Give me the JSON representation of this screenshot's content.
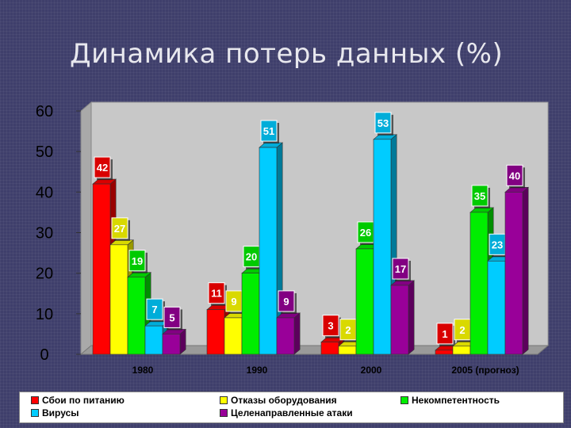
{
  "slide": {
    "title": "Динамика потерь данных (%)"
  },
  "chart_data": {
    "type": "bar",
    "title": "Динамика потерь данных (%)",
    "xlabel": "",
    "ylabel": "",
    "ylim": [
      0,
      60
    ],
    "yticks": [
      0,
      10,
      20,
      30,
      40,
      50,
      60
    ],
    "grid": false,
    "legend_position": "bottom",
    "categories": [
      "1980",
      "1990",
      "2000",
      "2005 (прогноз)"
    ],
    "series": [
      {
        "name": "Сбои по питанию",
        "color": "#ff0000",
        "values": [
          42,
          11,
          3,
          1
        ]
      },
      {
        "name": "Отказы оборудования",
        "color": "#ffff00",
        "values": [
          27,
          9,
          2,
          2
        ]
      },
      {
        "name": "Некомпетентность",
        "color": "#00ee00",
        "values": [
          19,
          20,
          26,
          35
        ]
      },
      {
        "name": "Вирусы",
        "color": "#00ccff",
        "values": [
          7,
          51,
          53,
          23
        ]
      },
      {
        "name": "Целенаправленные атаки",
        "color": "#990099",
        "values": [
          5,
          9,
          17,
          40
        ]
      }
    ]
  }
}
